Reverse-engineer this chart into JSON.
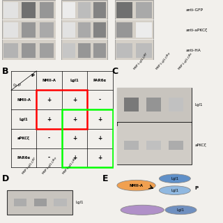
{
  "bg_color": "#f2f0ec",
  "anti_labels": [
    "anti-GFP",
    "anti-aPKCζ",
    "anti-HA"
  ],
  "table_rows": [
    "NMII-A",
    "Lgl1",
    "aPKCζ",
    "PAR6α"
  ],
  "table_cols": [
    "NMII-A",
    "Lgl1",
    "PAR6α"
  ],
  "table_data": [
    [
      "+",
      "+",
      "-"
    ],
    [
      "+",
      "+",
      "+"
    ],
    [
      "-",
      "+",
      "+"
    ],
    [
      "-",
      "+",
      "+"
    ]
  ],
  "lgl1_label": "Lgl1",
  "apkc_label": "aPKCζ",
  "p_label": "P",
  "nmiia_label": "NMII-A",
  "wb_bg": "#c8c5c0",
  "wb_bg2": "#d8d5d0",
  "ellipse_nmiia": "#f0a050",
  "ellipse_lgl1_dark": "#6090c8",
  "ellipse_lgl1_light": "#90b8e0",
  "ellipse_purple": "#b090c8",
  "ellipse_lgl1_bot": "#7090c0"
}
